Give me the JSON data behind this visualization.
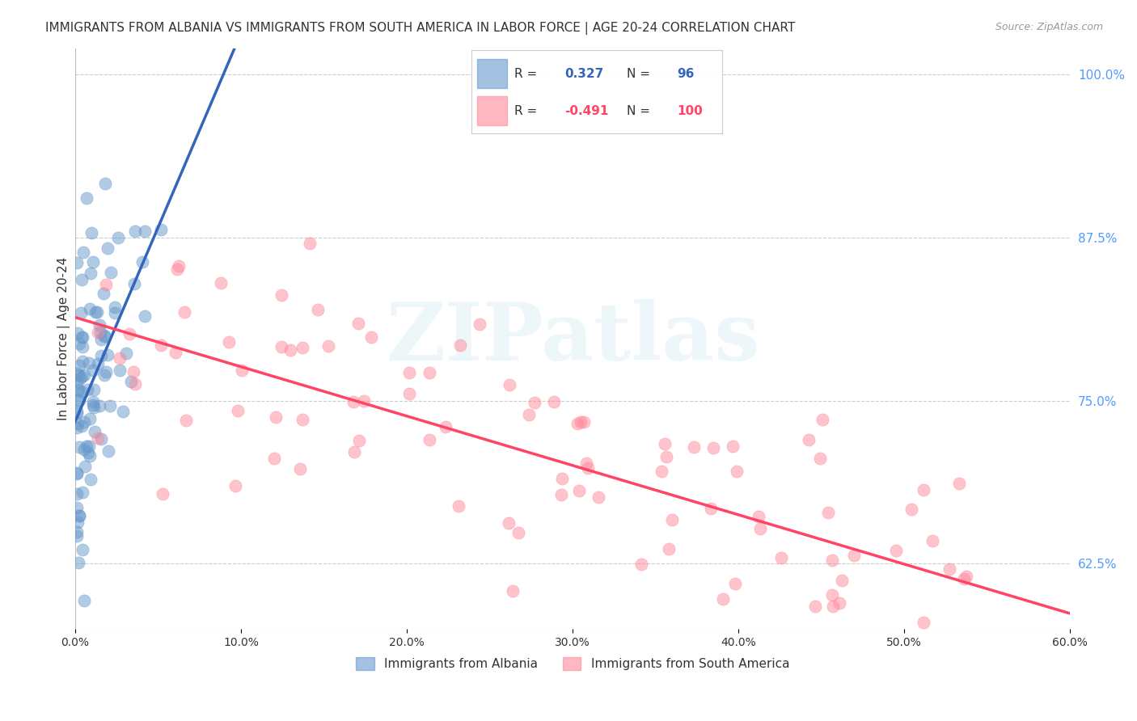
{
  "title": "IMMIGRANTS FROM ALBANIA VS IMMIGRANTS FROM SOUTH AMERICA IN LABOR FORCE | AGE 20-24 CORRELATION CHART",
  "source": "Source: ZipAtlas.com",
  "ylabel": "In Labor Force | Age 20-24",
  "xlim": [
    0.0,
    0.6
  ],
  "ylim": [
    0.575,
    1.02
  ],
  "yticks": [
    0.625,
    0.75,
    0.875,
    1.0
  ],
  "ytick_labels": [
    "62.5%",
    "75.0%",
    "87.5%",
    "100.0%"
  ],
  "xticks": [
    0.0,
    0.1,
    0.2,
    0.3,
    0.4,
    0.5,
    0.6
  ],
  "xtick_labels": [
    "0.0%",
    "10.0%",
    "20.0%",
    "30.0%",
    "40.0%",
    "50.0%",
    "60.0%"
  ],
  "albania_color": "#6699CC",
  "south_america_color": "#FF8899",
  "albania_trend_color": "#3366BB",
  "south_america_trend_color": "#FF4466",
  "albania_R": 0.327,
  "albania_N": 96,
  "south_america_R": -0.491,
  "south_america_N": 100,
  "watermark": "ZIPatlas",
  "background_color": "#FFFFFF",
  "grid_color": "#CCCCCC",
  "right_tick_color": "#5599FF",
  "title_fontsize": 11,
  "legend_fontsize": 11,
  "albania_seed": 42,
  "south_america_seed": 99
}
